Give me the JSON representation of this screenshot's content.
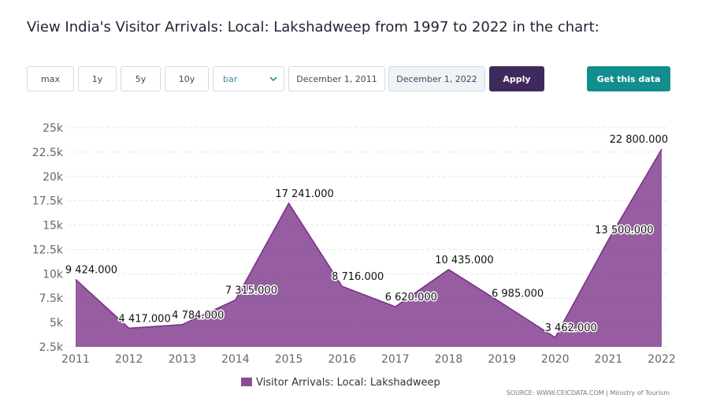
{
  "header": {
    "title": "View India's Visitor Arrivals: Local: Lakshadweep from 1997 to 2022 in the chart:"
  },
  "controls": {
    "ranges": [
      "max",
      "1y",
      "5y",
      "10y"
    ],
    "chart_type": "bar",
    "start_date": "December 1, 2011",
    "end_date": "December 1, 2022",
    "apply": "Apply",
    "get_data": "Get this data"
  },
  "chart_data": {
    "type": "area",
    "categories": [
      "2011",
      "2012",
      "2013",
      "2014",
      "2015",
      "2016",
      "2017",
      "2018",
      "2019",
      "2020",
      "2021",
      "2022"
    ],
    "series": [
      {
        "name": "Visitor Arrivals: Local: Lakshadweep",
        "color": "#8b4b96",
        "values": [
          9424,
          4417,
          4784,
          7315,
          17241,
          8716,
          6620,
          10435,
          6985,
          3462,
          13500,
          22800
        ],
        "value_labels": [
          "9 424.000",
          "4 417.000",
          "4 784.000",
          "7 315.000",
          "17 241.000",
          "8 716.000",
          "6 620.000",
          "10 435.000",
          "6 985.000",
          "3 462.000",
          "13 500.000",
          "22 800.000"
        ]
      }
    ],
    "ylim": [
      2500,
      25000
    ],
    "yticks": [
      {
        "value": 2500,
        "label": "2.5k"
      },
      {
        "value": 5000,
        "label": "5k"
      },
      {
        "value": 7500,
        "label": "7.5k"
      },
      {
        "value": 10000,
        "label": "10k"
      },
      {
        "value": 12500,
        "label": "12.5k"
      },
      {
        "value": 15000,
        "label": "15k"
      },
      {
        "value": 17500,
        "label": "17.5k"
      },
      {
        "value": 20000,
        "label": "20k"
      },
      {
        "value": 22500,
        "label": "22.5k"
      },
      {
        "value": 25000,
        "label": "25k"
      }
    ],
    "grid": true,
    "legend": "bottom",
    "source": "SOURCE: WWW.CEICDATA.COM | Ministry of Tourism"
  }
}
